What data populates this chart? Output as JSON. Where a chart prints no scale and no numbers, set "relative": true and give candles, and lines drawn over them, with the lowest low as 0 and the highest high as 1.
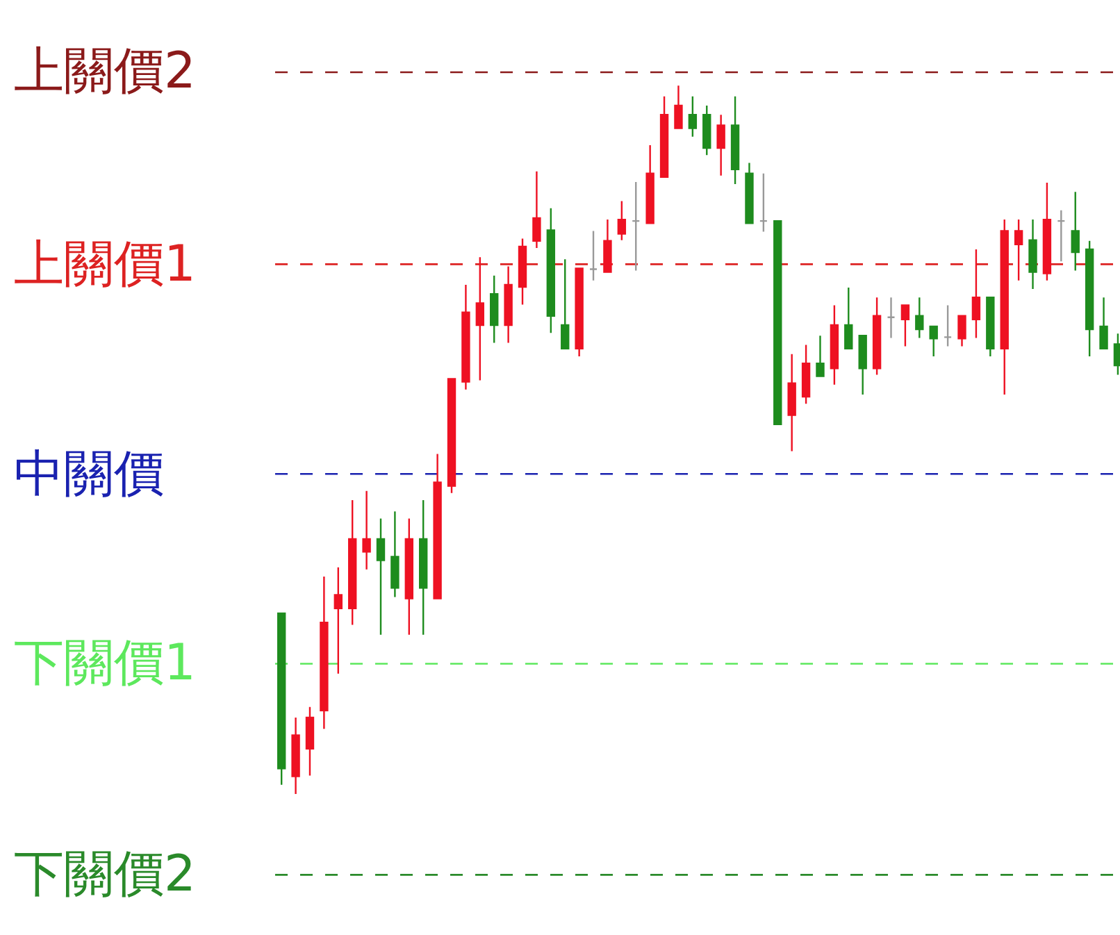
{
  "chart_data": {
    "type": "candlestick",
    "relative": true,
    "categories": [
      null,
      null,
      null,
      null,
      null,
      null,
      null,
      null,
      null,
      null,
      null,
      null,
      null,
      null,
      null,
      null,
      null,
      null,
      null,
      null,
      null,
      null,
      null,
      null,
      null,
      null,
      null,
      null,
      null,
      null,
      null,
      null,
      null,
      null,
      null,
      null,
      null,
      null,
      null,
      null,
      null,
      null,
      null,
      null,
      null,
      null,
      null,
      null,
      null,
      null,
      null,
      null,
      null,
      null,
      null,
      null,
      null,
      null,
      null,
      null
    ],
    "ohlc": [
      [
        0.255,
        0.255,
        0.013,
        0.036
      ],
      [
        0.025,
        0.108,
        0,
        0.083
      ],
      [
        0.064,
        0.123,
        0.026,
        0.108
      ],
      [
        0.118,
        0.307,
        0.092,
        0.242
      ],
      [
        0.262,
        0.32,
        0.17,
        0.281
      ],
      [
        0.262,
        0.415,
        0.239,
        0.36
      ],
      [
        0.342,
        0.428,
        0.317,
        0.36
      ],
      [
        0.36,
        0.389,
        0.225,
        0.33
      ],
      [
        0.335,
        0.399,
        0.278,
        0.291
      ],
      [
        0.276,
        0.389,
        0.225,
        0.36
      ],
      [
        0.36,
        0.415,
        0.225,
        0.291
      ],
      [
        0.276,
        0.48,
        0.276,
        0.44
      ],
      [
        0.435,
        0.586,
        0.425,
        0.586
      ],
      [
        0.582,
        0.719,
        0.571,
        0.68
      ],
      [
        0.662,
        0.758,
        0.584,
        0.693
      ],
      [
        0.706,
        0.732,
        0.637,
        0.662
      ],
      [
        0.662,
        0.745,
        0.637,
        0.719
      ],
      [
        0.716,
        0.784,
        0.691,
        0.773
      ],
      [
        0.781,
        0.879,
        0.771,
        0.813
      ],
      [
        0.796,
        0.827,
        0.651,
        0.675
      ],
      [
        0.662,
        0.755,
        0.629,
        0.629
      ],
      [
        0.629,
        0.742,
        0.618,
        0.742
      ],
      [
        0.741,
        0.795,
        0.725,
        0.741
      ],
      [
        0.737,
        0.811,
        0.737,
        0.781
      ],
      [
        0.791,
        0.837,
        0.782,
        0.811
      ],
      [
        0.809,
        0.864,
        0.739,
        0.809
      ],
      [
        0.806,
        0.916,
        0.806,
        0.876
      ],
      [
        0.871,
        0.985,
        0.871,
        0.959
      ],
      [
        0.94,
        1,
        0.94,
        0.972
      ],
      [
        0.959,
        0.985,
        0.928,
        0.94
      ],
      [
        0.959,
        0.972,
        0.902,
        0.912
      ],
      [
        0.912,
        0.959,
        0.873,
        0.944
      ],
      [
        0.944,
        0.985,
        0.861,
        0.882
      ],
      [
        0.876,
        0.891,
        0.806,
        0.806
      ],
      [
        0.809,
        0.876,
        0.794,
        0.809
      ],
      [
        0.809,
        0.809,
        0.522,
        0.522
      ],
      [
        0.535,
        0.621,
        0.484,
        0.58
      ],
      [
        0.561,
        0.634,
        0.551,
        0.608
      ],
      [
        0.608,
        0.647,
        0.59,
        0.59
      ],
      [
        0.601,
        0.69,
        0.578,
        0.662
      ],
      [
        0.662,
        0.715,
        0.629,
        0.629
      ],
      [
        0.647,
        0.647,
        0.564,
        0.601
      ],
      [
        0.601,
        0.701,
        0.592,
        0.675
      ],
      [
        0.673,
        0.701,
        0.644,
        0.673
      ],
      [
        0.67,
        0.69,
        0.632,
        0.69
      ],
      [
        0.675,
        0.701,
        0.644,
        0.656
      ],
      [
        0.66,
        0.66,
        0.618,
        0.643
      ],
      [
        0.645,
        0.69,
        0.632,
        0.645
      ],
      [
        0.643,
        0.675,
        0.632,
        0.675
      ],
      [
        0.67,
        0.769,
        0.644,
        0.701
      ],
      [
        0.701,
        0.701,
        0.618,
        0.629
      ],
      [
        0.629,
        0.811,
        0.564,
        0.795
      ],
      [
        0.776,
        0.811,
        0.725,
        0.795
      ],
      [
        0.782,
        0.811,
        0.713,
        0.737
      ],
      [
        0.735,
        0.863,
        0.725,
        0.811
      ],
      [
        0.809,
        0.824,
        0.752,
        0.809
      ],
      [
        0.795,
        0.85,
        0.739,
        0.765
      ],
      [
        0.769,
        0.781,
        0.618,
        0.656
      ],
      [
        0.66,
        0.701,
        0.629,
        0.629
      ],
      [
        0.635,
        0.65,
        0.592,
        0.605
      ]
    ],
    "colors": [
      "#1e8c1e",
      "#ee1122",
      "#ee1122",
      "#ee1122",
      "#ee1122",
      "#ee1122",
      "#ee1122",
      "#1e8c1e",
      "#1e8c1e",
      "#ee1122",
      "#1e8c1e",
      "#ee1122",
      "#ee1122",
      "#ee1122",
      "#ee1122",
      "#1e8c1e",
      "#ee1122",
      "#ee1122",
      "#ee1122",
      "#1e8c1e",
      "#1e8c1e",
      "#ee1122",
      "#999999",
      "#ee1122",
      "#ee1122",
      "#999999",
      "#ee1122",
      "#ee1122",
      "#ee1122",
      "#1e8c1e",
      "#1e8c1e",
      "#ee1122",
      "#1e8c1e",
      "#1e8c1e",
      "#999999",
      "#1e8c1e",
      "#ee1122",
      "#ee1122",
      "#1e8c1e",
      "#ee1122",
      "#1e8c1e",
      "#1e8c1e",
      "#ee1122",
      "#999999",
      "#ee1122",
      "#1e8c1e",
      "#1e8c1e",
      "#999999",
      "#ee1122",
      "#ee1122",
      "#1e8c1e",
      "#ee1122",
      "#ee1122",
      "#1e8c1e",
      "#ee1122",
      "#999999",
      "#1e8c1e",
      "#1e8c1e",
      "#1e8c1e",
      "#1e8c1e"
    ],
    "ref_lines": [
      {
        "axis": "y",
        "value": 1.019,
        "label": "上關價2",
        "color": "#8b1a1a",
        "line_style": "dashed"
      },
      {
        "axis": "y",
        "value": 0.748,
        "label": "上關價1",
        "color": "#dd2222",
        "line_style": "dashed"
      },
      {
        "axis": "y",
        "value": 0.452,
        "label": "中關價",
        "color": "#1a22b0",
        "line_style": "dashed"
      },
      {
        "axis": "y",
        "value": 0.184,
        "label": "下關價1",
        "color": "#5de85d",
        "line_style": "dashed"
      },
      {
        "axis": "y",
        "value": -0.114,
        "label": "下關價2",
        "color": "#2a8a2a",
        "line_style": "dashed"
      }
    ]
  }
}
